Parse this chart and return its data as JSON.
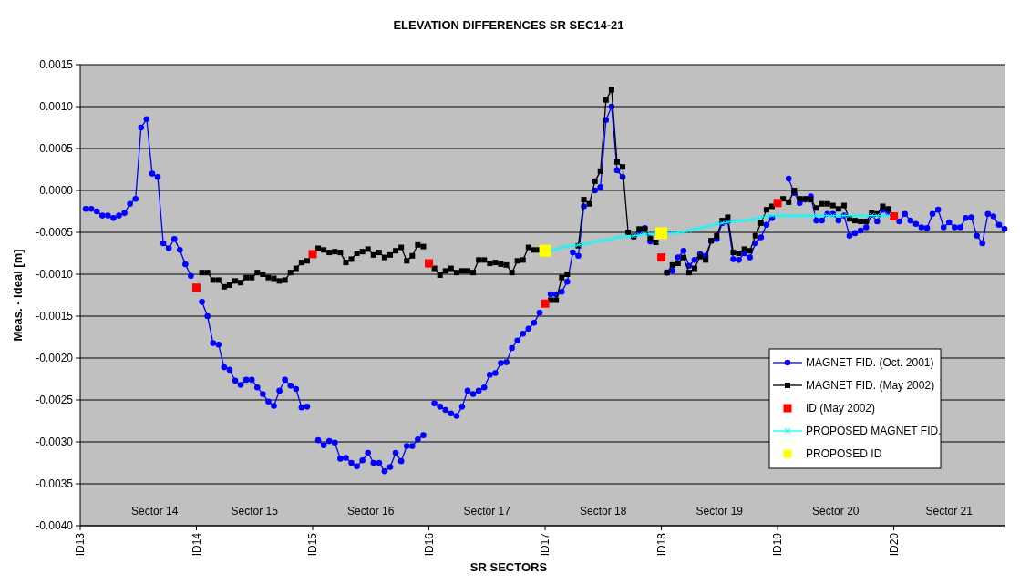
{
  "chart_data": {
    "type": "line",
    "title": "ELEVATION DIFFERENCES SR SEC14-21",
    "xlabel": "SR SECTORS",
    "ylabel": "Meas. - Ideal [m]",
    "categories": [
      "ID13",
      null,
      null,
      null,
      null,
      null,
      null,
      null,
      null,
      null,
      null,
      null,
      null,
      null,
      null,
      null,
      null,
      null,
      null,
      null,
      null,
      "ID14",
      null,
      null,
      null,
      null,
      null,
      null,
      null,
      null,
      null,
      null,
      null,
      null,
      null,
      null,
      null,
      null,
      null,
      null,
      null,
      null,
      "ID15",
      null,
      null,
      null,
      null,
      null,
      null,
      null,
      null,
      null,
      null,
      null,
      null,
      null,
      null,
      null,
      null,
      null,
      null,
      null,
      null,
      "ID16",
      null,
      null,
      null,
      null,
      null,
      null,
      null,
      null,
      null,
      null,
      null,
      null,
      null,
      null,
      null,
      null,
      null,
      null,
      null,
      null,
      "ID17",
      null,
      null,
      null,
      null,
      null,
      null,
      null,
      null,
      null,
      null,
      null,
      null,
      null,
      null,
      null,
      null,
      null,
      null,
      null,
      null,
      "ID18",
      null,
      null,
      null,
      null,
      null,
      null,
      null,
      null,
      null,
      null,
      null,
      null,
      null,
      null,
      null,
      null,
      null,
      null,
      null,
      null,
      "ID19",
      null,
      null,
      null,
      null,
      null,
      null,
      null,
      null,
      null,
      null,
      null,
      null,
      null,
      null,
      null,
      null,
      null,
      null,
      null,
      null,
      "ID20",
      null,
      null,
      null,
      null,
      null,
      null,
      null,
      null,
      null,
      null,
      null,
      null,
      null,
      null,
      null,
      null,
      null,
      null,
      null,
      null
    ],
    "ylim": [
      -0.004,
      0.0015
    ],
    "yticks": [
      {
        "value": -0.004,
        "label": "-0.0040"
      },
      {
        "value": -0.0035,
        "label": "-0.0035"
      },
      {
        "value": -0.003,
        "label": "-0.0030"
      },
      {
        "value": -0.0025,
        "label": "-0.0025"
      },
      {
        "value": -0.002,
        "label": "-0.0020"
      },
      {
        "value": -0.0015,
        "label": "-0.0015"
      },
      {
        "value": -0.001,
        "label": "-0.0010"
      },
      {
        "value": -0.0005,
        "label": "-0.0005"
      },
      {
        "value": 0,
        "label": "0.0000"
      },
      {
        "value": 0.0005,
        "label": "0.0005"
      },
      {
        "value": 0.001,
        "label": "0.0010"
      },
      {
        "value": 0.0015,
        "label": "0.0015"
      }
    ],
    "grid": "y",
    "legend": "bottom right",
    "annotations": [
      "Sector 14",
      "Sector 15",
      "Sector 16",
      "Sector 17",
      "Sector 18",
      "Sector 19",
      "Sector 20",
      "Sector 21"
    ],
    "series": [
      {
        "name": "MAGNET FID. (Oct. 2001)",
        "type": "line",
        "color": "#0000ff",
        "marker": "circle",
        "values": [
          null,
          -0.00022,
          -0.00022,
          -0.00025,
          -0.0003,
          -0.0003,
          -0.00033,
          -0.0003,
          -0.00027,
          -0.00016,
          -0.0001,
          0.00075,
          0.00085,
          0.0002,
          0.00016,
          -0.00063,
          -0.00069,
          -0.00058,
          -0.00071,
          -0.00088,
          -0.00102,
          null,
          -0.00133,
          -0.0015,
          -0.00182,
          -0.00184,
          -0.00211,
          -0.00214,
          -0.00227,
          -0.00232,
          -0.00226,
          -0.00226,
          -0.00235,
          -0.00243,
          -0.00252,
          -0.00257,
          -0.00239,
          -0.00226,
          -0.00233,
          -0.00237,
          -0.00259,
          -0.00258,
          null,
          -0.00298,
          -0.00304,
          -0.00299,
          -0.00301,
          -0.0032,
          -0.00319,
          -0.00325,
          -0.00329,
          -0.00322,
          -0.00313,
          -0.00325,
          -0.00325,
          -0.00335,
          -0.0033,
          -0.00313,
          -0.00323,
          -0.00305,
          -0.00305,
          -0.00297,
          -0.00292,
          null,
          -0.00254,
          -0.00258,
          -0.00262,
          -0.00266,
          -0.00269,
          -0.00258,
          -0.00239,
          -0.00243,
          -0.00239,
          -0.00235,
          -0.0022,
          -0.00218,
          -0.00206,
          -0.00205,
          -0.00188,
          -0.00179,
          -0.00171,
          -0.00165,
          -0.00158,
          -0.00146,
          null,
          -0.00124,
          -0.00124,
          -0.00121,
          -0.00109,
          -0.00074,
          -0.00078,
          -0.00019,
          null,
          0,
          4e-05,
          0.00084,
          0.001,
          0.00024,
          0.00016,
          null,
          -0.00055,
          -0.0005,
          -0.00045,
          -0.00061,
          null,
          null,
          -0.00098,
          -0.00096,
          -0.0008,
          -0.00072,
          -0.0009,
          -0.00083,
          -0.00076,
          -0.00078,
          -0.0006,
          -0.00058,
          -0.00039,
          -0.00037,
          -0.00082,
          -0.00083,
          -0.00075,
          -0.0008,
          -0.00063,
          -0.00056,
          -0.00041,
          -0.00033,
          null,
          null,
          0.00014,
          -3e-05,
          -0.00015,
          -0.00011,
          -7e-05,
          -0.00036,
          -0.00036,
          -0.00028,
          -0.00028,
          -0.00036,
          -0.0003,
          -0.00054,
          -0.00051,
          -0.00048,
          -0.00044,
          -0.00029,
          -0.00037,
          -0.00023,
          -0.00026,
          null,
          -0.00037,
          -0.00028,
          -0.00036,
          -0.0004,
          -0.00044,
          -0.00045,
          -0.00028,
          -0.00023,
          -0.00044,
          -0.00038,
          -0.00044,
          -0.00044,
          -0.00033,
          -0.00032,
          -0.00054,
          -0.00063,
          -0.00028,
          -0.00031,
          -0.00041,
          -0.00046
        ]
      },
      {
        "name": "MAGNET FID. (May 2002)",
        "type": "line",
        "color": "#000000",
        "marker": "square",
        "values": [
          null,
          null,
          null,
          null,
          null,
          null,
          null,
          null,
          null,
          null,
          null,
          null,
          null,
          null,
          null,
          null,
          null,
          null,
          null,
          null,
          null,
          null,
          -0.00098,
          -0.00098,
          -0.00107,
          -0.00107,
          -0.00115,
          -0.00113,
          -0.00108,
          -0.0011,
          -0.00104,
          -0.00104,
          -0.00098,
          -0.001,
          -0.00104,
          -0.00105,
          -0.00108,
          -0.00107,
          -0.00098,
          -0.00093,
          -0.00086,
          -0.00084,
          null,
          -0.00069,
          -0.00071,
          -0.00074,
          -0.00073,
          -0.00074,
          -0.00086,
          -0.00082,
          -0.00075,
          -0.00073,
          -0.0007,
          -0.00077,
          -0.00074,
          -0.0008,
          -0.00077,
          -0.00072,
          -0.00068,
          -0.00084,
          -0.00078,
          -0.00065,
          -0.00067,
          null,
          -0.00093,
          -0.00101,
          -0.00096,
          -0.00093,
          -0.00098,
          -0.00096,
          -0.00096,
          -0.00098,
          -0.00083,
          -0.00083,
          -0.00087,
          -0.00086,
          -0.00088,
          -0.00089,
          -0.00098,
          -0.00084,
          -0.00083,
          -0.00068,
          -0.00071,
          -0.00071,
          null,
          -0.00131,
          -0.00131,
          -0.00104,
          -0.001,
          null,
          -0.00066,
          -0.00011,
          -0.00016,
          0.00011,
          0.00023,
          0.00108,
          0.0012,
          0.00034,
          0.00028,
          -0.0005,
          -0.00055,
          -0.00046,
          -0.00046,
          -0.00057,
          -0.00062,
          null,
          -0.00098,
          -0.00089,
          -0.00087,
          -0.0008,
          -0.00098,
          -0.00093,
          -0.00079,
          -0.00083,
          -0.0006,
          -0.00054,
          -0.00036,
          -0.00032,
          -0.00074,
          -0.00075,
          -0.0007,
          -0.00072,
          -0.00054,
          -0.00039,
          -0.00023,
          -0.00019,
          null,
          -0.0001,
          -0.00014,
          0,
          -0.0001,
          -0.0001,
          -0.00011,
          -0.00021,
          -0.00016,
          -0.00016,
          -0.00018,
          -0.00022,
          -0.00018,
          -0.00034,
          -0.00036,
          -0.00037,
          -0.00037,
          -0.00027,
          -0.00028,
          -0.00019,
          -0.00022,
          null,
          null,
          null,
          null,
          null,
          null,
          null,
          null,
          null,
          null,
          null,
          null,
          null,
          null,
          null,
          null,
          null,
          null,
          null,
          null,
          null
        ]
      },
      {
        "name": "ID (May 2002)",
        "type": "scatter",
        "color": "#ff0000",
        "marker": "square",
        "x": [
          "ID14",
          "ID15",
          "ID16",
          "ID17",
          "ID18",
          "ID19",
          "ID20"
        ],
        "values": [
          -0.00116,
          -0.00076,
          -0.00087,
          -0.00135,
          -0.0008,
          -0.00015,
          -0.00031
        ]
      },
      {
        "name": "PROPOSED MAGNET FID.",
        "type": "line",
        "color": "#00ffff",
        "marker": "cross",
        "values": [
          null,
          null,
          null,
          null,
          null,
          null,
          null,
          null,
          null,
          null,
          null,
          null,
          null,
          null,
          null,
          null,
          null,
          null,
          null,
          null,
          null,
          null,
          null,
          null,
          null,
          null,
          null,
          null,
          null,
          null,
          null,
          null,
          null,
          null,
          null,
          null,
          null,
          null,
          null,
          null,
          null,
          null,
          null,
          null,
          null,
          null,
          null,
          null,
          null,
          null,
          null,
          null,
          null,
          null,
          null,
          null,
          null,
          null,
          null,
          null,
          null,
          null,
          null,
          null,
          null,
          null,
          null,
          null,
          null,
          null,
          null,
          null,
          null,
          null,
          null,
          null,
          null,
          null,
          null,
          null,
          null,
          null,
          null,
          null,
          null,
          -0.00072,
          -0.0007,
          -0.00068,
          -0.00067,
          -0.00066,
          -0.00065,
          -0.00064,
          -0.00063,
          -0.00061,
          -0.0006,
          -0.00059,
          -0.00058,
          -0.00056,
          -0.00055,
          -0.00055,
          -0.00054,
          -0.00053,
          -0.00052,
          -0.00052,
          -0.00051,
          null,
          -0.00051,
          -0.00051,
          -0.0005,
          -0.0005,
          -0.00048,
          -0.00046,
          -0.00045,
          -0.00043,
          -0.00042,
          -0.0004,
          -0.00039,
          -0.00038,
          -0.00037,
          -0.00036,
          -0.00036,
          -0.00035,
          -0.00034,
          -0.00032,
          -0.00031,
          -0.0003,
          -0.0003,
          -0.0003,
          -0.0003,
          -0.0003,
          -0.0003,
          -0.0003,
          -0.0003,
          -0.0003,
          -0.0003,
          -0.0003,
          -0.0003,
          -0.0003,
          -0.0003,
          -0.0003,
          -0.0003,
          -0.0003,
          -0.0003,
          -0.0003,
          -0.0003,
          -0.0003,
          -0.0003,
          null,
          null,
          null,
          null,
          null,
          null,
          null,
          null,
          null,
          null,
          null,
          null,
          null,
          null,
          null,
          null,
          null,
          null,
          null,
          null,
          null
        ]
      },
      {
        "name": "PROPOSED ID",
        "type": "scatter",
        "color": "#ffff00",
        "marker": "square",
        "x": [
          "ID17",
          "ID18"
        ],
        "values": [
          -0.00072,
          -0.00051
        ]
      }
    ]
  }
}
